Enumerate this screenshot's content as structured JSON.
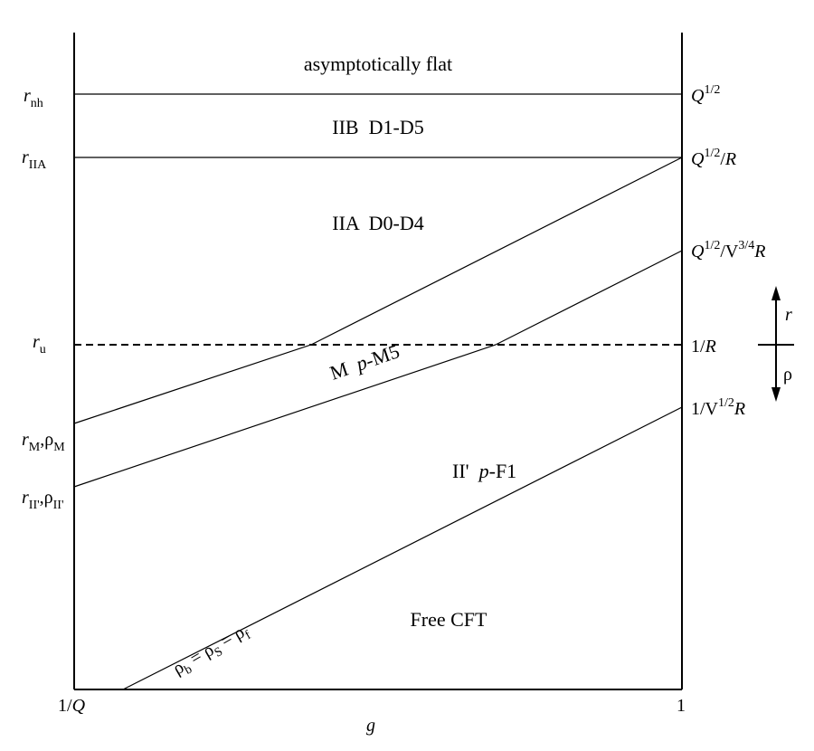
{
  "regions": {
    "flat": "asymptotically flat",
    "iib": "IIB  D1-D5",
    "iia": "IIA  D0-D4",
    "m_a": "M  ",
    "m_p": "p",
    "m_b": "-M5",
    "ii_a": "II'  ",
    "ii_p": "p",
    "ii_b": "-F1",
    "free": "Free CFT"
  },
  "left_labels": {
    "rnh": {
      "main": "r",
      "sub": "nh"
    },
    "riia": {
      "main": "r",
      "sub": "IIA"
    },
    "ru": {
      "main": "r",
      "sub": "u"
    },
    "rm": {
      "r": "r",
      "sub1": "M",
      "comma": ",ρ",
      "sub2": "M"
    },
    "rii": {
      "r": "r",
      "sub1": "II'",
      "comma": ",ρ",
      "sub2": "II'"
    }
  },
  "right_labels": {
    "q12": {
      "q": "Q",
      "sup": "1/2"
    },
    "q12r": {
      "q": "Q",
      "sup": "1/2",
      "rest": "/",
      "r": "R"
    },
    "q12v": {
      "q": "Q",
      "sup1": "1/2",
      "mid": "/V",
      "sup2": "3/4",
      "r": "R"
    },
    "oneoverr": {
      "pre": "1/",
      "r": "R"
    },
    "v12r": {
      "pre": "1/V",
      "sup": "1/2",
      "r": "R"
    }
  },
  "arrow": {
    "up": "r",
    "down": "ρ"
  },
  "axis": {
    "x_left": "1/",
    "x_left_q": "Q",
    "x_right": "1",
    "xlabel": "g"
  },
  "diag": {
    "rho_b": "ρ",
    "sub_b": "b",
    "eq1": " = ρ",
    "sub_s": "S",
    "eq2": " = ρ",
    "sub_f": "f"
  }
}
